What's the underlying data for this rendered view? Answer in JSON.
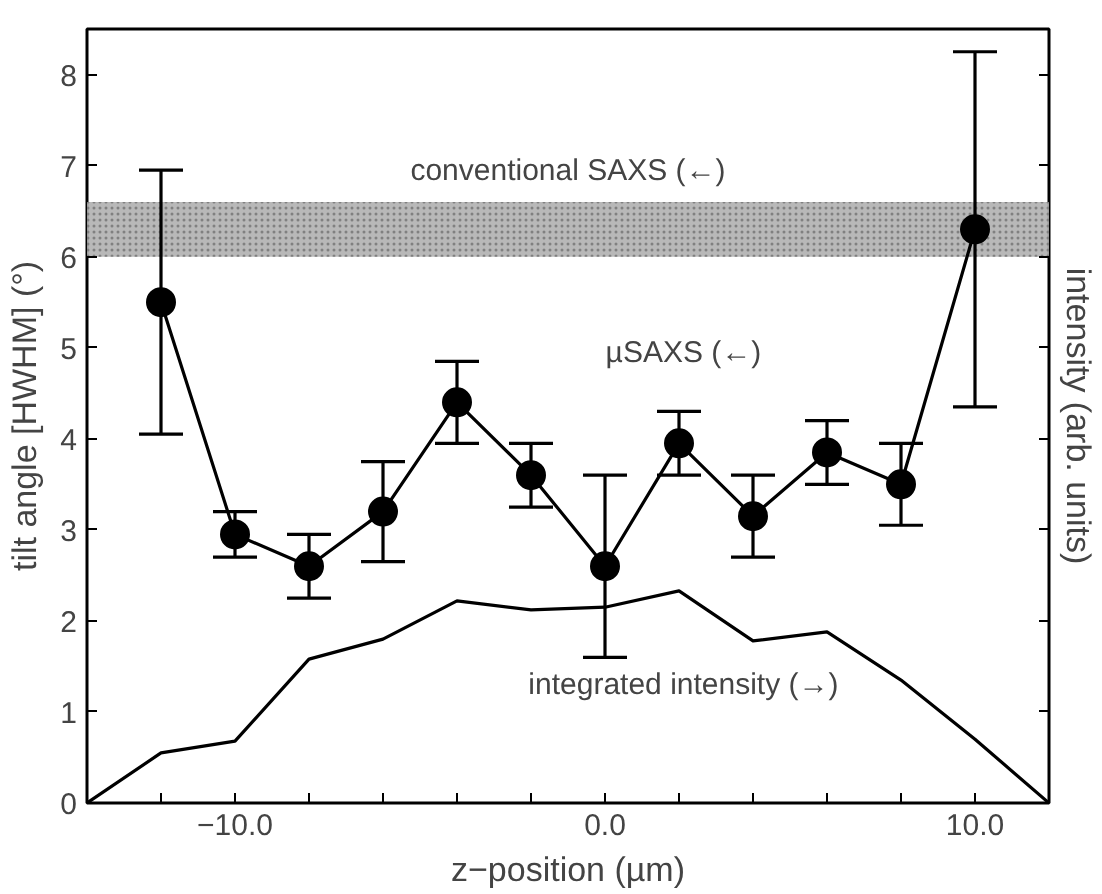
{
  "chart_data": {
    "type": "line",
    "xlabel": "z−position (µm)",
    "ylabel": "tilt angle [HWHM] (°)",
    "y2label": "intensity (arb. units)",
    "series": [
      {
        "name": "µSAXS (←)",
        "color": "#000000",
        "marker": "circle",
        "x": [
          -12,
          -10,
          -8,
          -6,
          -4,
          -2,
          0,
          2,
          4,
          6,
          8,
          10
        ],
        "values": [
          5.5,
          2.95,
          2.6,
          3.2,
          4.4,
          3.6,
          2.6,
          3.95,
          3.15,
          3.85,
          3.5,
          6.3
        ],
        "errors": [
          [
            4.05,
            6.95
          ],
          [
            2.7,
            3.2
          ],
          [
            2.25,
            2.95
          ],
          [
            2.65,
            3.75
          ],
          [
            3.95,
            4.85
          ],
          [
            3.25,
            3.95
          ],
          [
            1.6,
            3.6
          ],
          [
            3.6,
            4.3
          ],
          [
            2.7,
            3.6
          ],
          [
            3.5,
            4.2
          ],
          [
            3.05,
            3.95
          ],
          [
            4.35,
            8.25
          ]
        ]
      },
      {
        "name": "integrated intensity (→)",
        "color": "#000000",
        "marker": "none",
        "x": [
          -14,
          -12,
          -10,
          -8,
          -6,
          -4,
          -2,
          0,
          2,
          4,
          6,
          8,
          10,
          12
        ],
        "values": [
          0,
          0.55,
          0.68,
          1.58,
          1.8,
          2.22,
          2.12,
          2.15,
          2.33,
          1.78,
          1.88,
          1.35,
          0.7,
          0
        ]
      }
    ],
    "bands": [
      {
        "axis": "y",
        "from": 6.0,
        "to": 6.6,
        "label": "conventional SAXS (←)",
        "color": "#b0b0b0"
      }
    ],
    "xlim": [
      -14,
      12
    ],
    "ylim": [
      0,
      8.5
    ],
    "xticks": [
      {
        "value": -12,
        "label": null
      },
      {
        "value": -10,
        "label": "−10.0"
      },
      {
        "value": -8,
        "label": null
      },
      {
        "value": -6,
        "label": null
      },
      {
        "value": -4,
        "label": null
      },
      {
        "value": -2,
        "label": null
      },
      {
        "value": 0,
        "label": "0.0"
      },
      {
        "value": 2,
        "label": null
      },
      {
        "value": 4,
        "label": null
      },
      {
        "value": 6,
        "label": null
      },
      {
        "value": 8,
        "label": null
      },
      {
        "value": 10,
        "label": "10.0"
      }
    ],
    "yticks": [
      0,
      1,
      2,
      3,
      4,
      5,
      6,
      7,
      8
    ],
    "tick_labels": "xy",
    "grid": false,
    "legend": false
  }
}
